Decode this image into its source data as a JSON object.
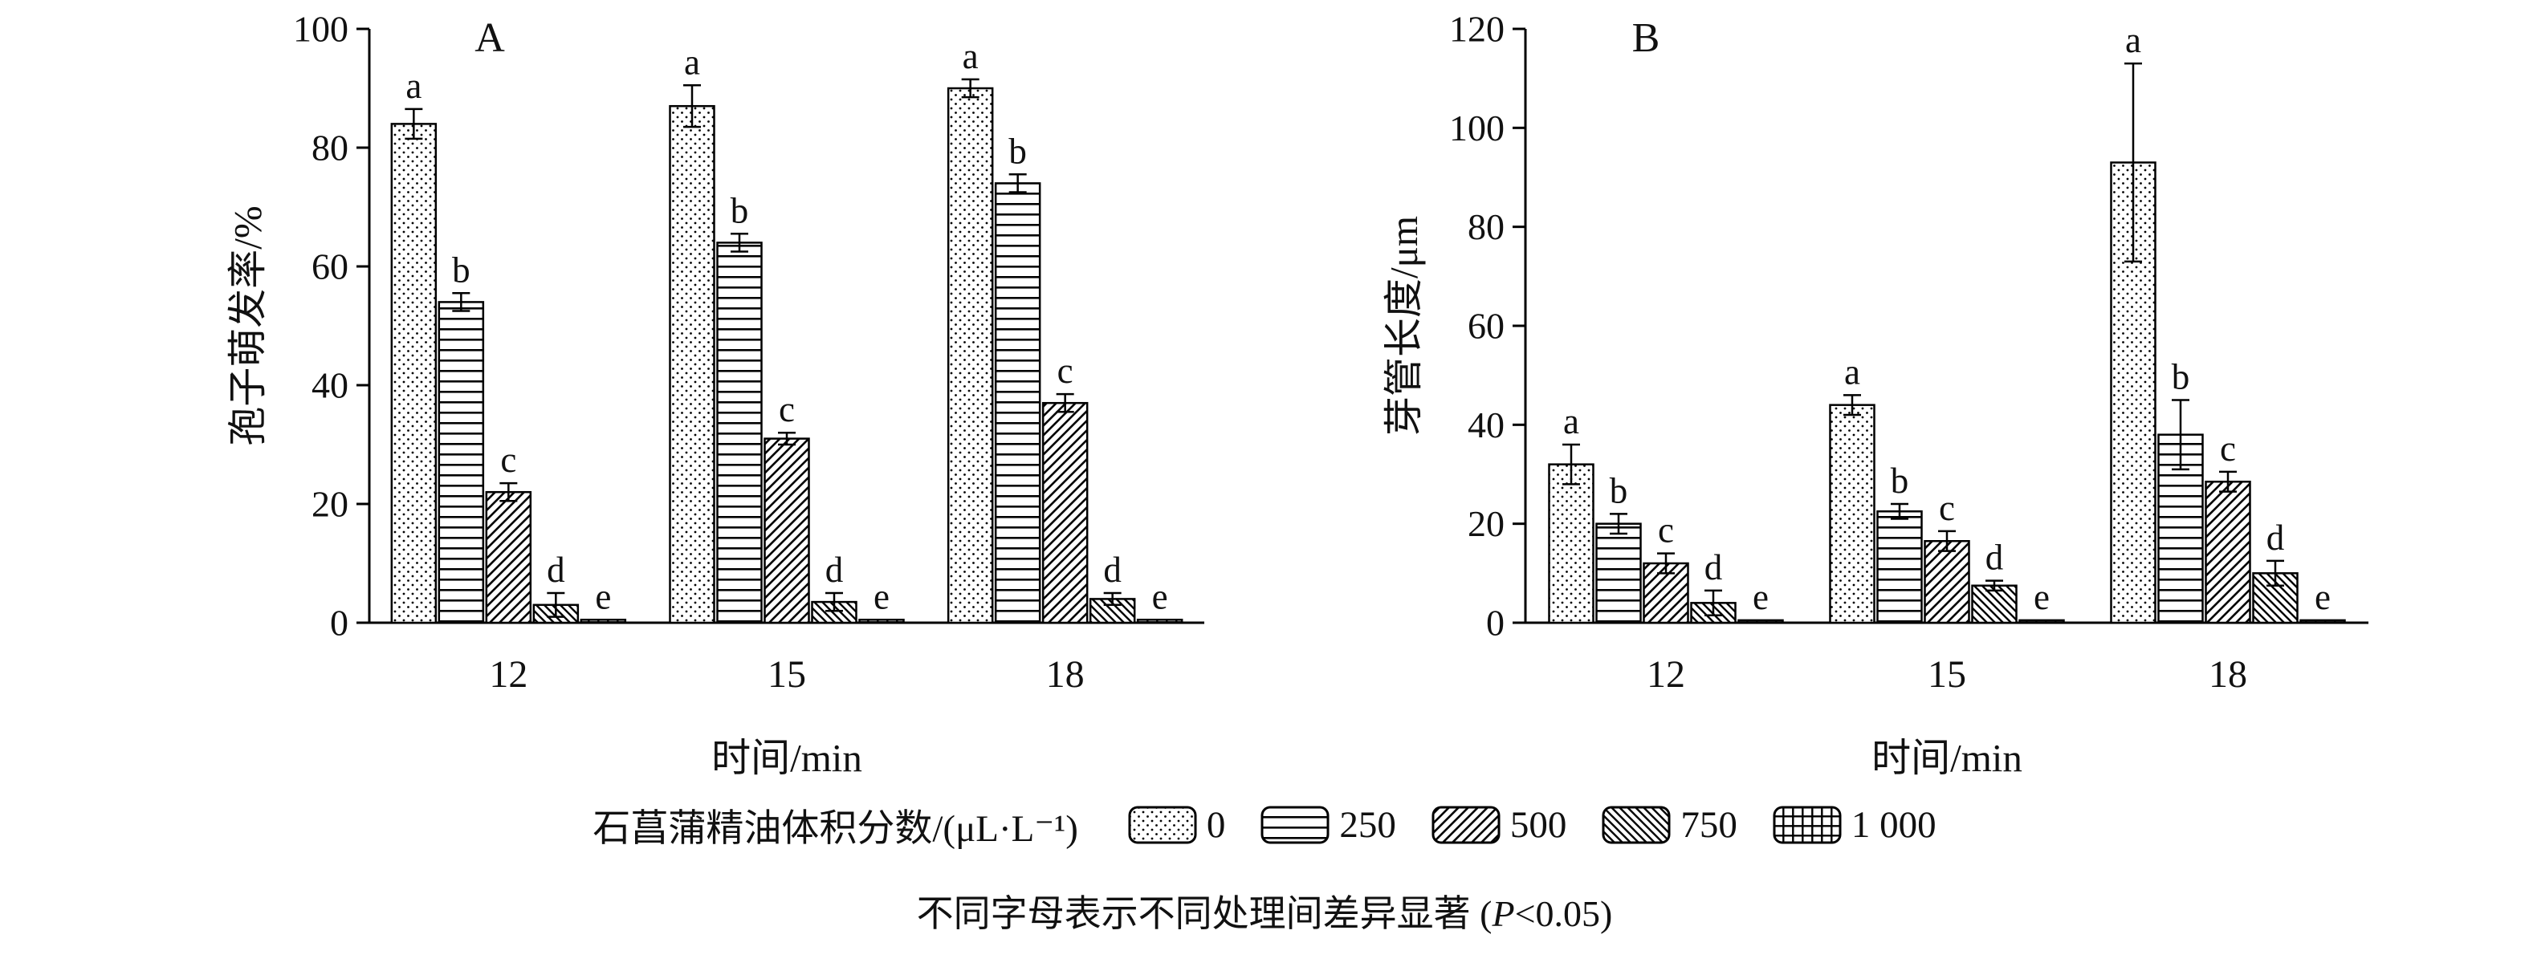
{
  "colors": {
    "foreground": "#000000",
    "background": "#ffffff"
  },
  "legend": {
    "title": "石菖蒲精油体积分数/(μL·L⁻¹)",
    "items": [
      {
        "label": "0",
        "pattern": "dots"
      },
      {
        "label": "250",
        "pattern": "hlines"
      },
      {
        "label": "500",
        "pattern": "fslash"
      },
      {
        "label": "750",
        "pattern": "bslash"
      },
      {
        "label": "1 000",
        "pattern": "grid"
      }
    ]
  },
  "caption": {
    "before": "不同字母表示不同处理间差异显著 (",
    "p": "P",
    "after": "<0.05)"
  },
  "chart_data": [
    {
      "type": "bar",
      "panel": "A",
      "title": "",
      "xlabel": "时间/min",
      "ylabel": "孢子萌发率/%",
      "ylim": [
        0,
        100
      ],
      "yticks": [
        0,
        20,
        40,
        60,
        80,
        100
      ],
      "grid": false,
      "legend_position": "shared-bottom",
      "categories": [
        "12",
        "15",
        "18"
      ],
      "series": [
        {
          "name": "0",
          "pattern": "dots",
          "values": [
            84,
            87,
            90
          ],
          "errors": [
            2.5,
            3.5,
            1.5
          ],
          "letters": [
            "a",
            "a",
            "a"
          ]
        },
        {
          "name": "250",
          "pattern": "hlines",
          "values": [
            54,
            64,
            74
          ],
          "errors": [
            1.5,
            1.5,
            1.5
          ],
          "letters": [
            "b",
            "b",
            "b"
          ]
        },
        {
          "name": "500",
          "pattern": "fslash",
          "values": [
            22,
            31,
            37
          ],
          "errors": [
            1.5,
            1.0,
            1.5
          ],
          "letters": [
            "c",
            "c",
            "c"
          ]
        },
        {
          "name": "750",
          "pattern": "bslash",
          "values": [
            3,
            3.5,
            4
          ],
          "errors": [
            2.0,
            1.5,
            1.0
          ],
          "letters": [
            "d",
            "d",
            "d"
          ]
        },
        {
          "name": "1 000",
          "pattern": "grid",
          "values": [
            0.5,
            0.5,
            0.5
          ],
          "errors": [
            0,
            0,
            0
          ],
          "letters": [
            "e",
            "e",
            "e"
          ]
        }
      ]
    },
    {
      "type": "bar",
      "panel": "B",
      "title": "",
      "xlabel": "时间/min",
      "ylabel": "芽管长度/μm",
      "ylim": [
        0,
        120
      ],
      "yticks": [
        0,
        20,
        40,
        60,
        80,
        100,
        120
      ],
      "grid": false,
      "legend_position": "shared-bottom",
      "categories": [
        "12",
        "15",
        "18"
      ],
      "series": [
        {
          "name": "0",
          "pattern": "dots",
          "values": [
            32,
            44,
            93
          ],
          "errors": [
            4,
            2,
            20
          ],
          "letters": [
            "a",
            "a",
            "a"
          ]
        },
        {
          "name": "250",
          "pattern": "hlines",
          "values": [
            20,
            22.5,
            38
          ],
          "errors": [
            2,
            1.5,
            7
          ],
          "letters": [
            "b",
            "b",
            "b"
          ]
        },
        {
          "name": "500",
          "pattern": "fslash",
          "values": [
            12,
            16.5,
            28.5
          ],
          "errors": [
            2,
            2,
            2
          ],
          "letters": [
            "c",
            "c",
            "c"
          ]
        },
        {
          "name": "750",
          "pattern": "bslash",
          "values": [
            4,
            7.5,
            10
          ],
          "errors": [
            2.5,
            1,
            2.5
          ],
          "letters": [
            "d",
            "d",
            "d"
          ]
        },
        {
          "name": "1 000",
          "pattern": "grid",
          "values": [
            0.5,
            0.5,
            0.5
          ],
          "errors": [
            0,
            0,
            0
          ],
          "letters": [
            "e",
            "e",
            "e"
          ]
        }
      ]
    }
  ]
}
